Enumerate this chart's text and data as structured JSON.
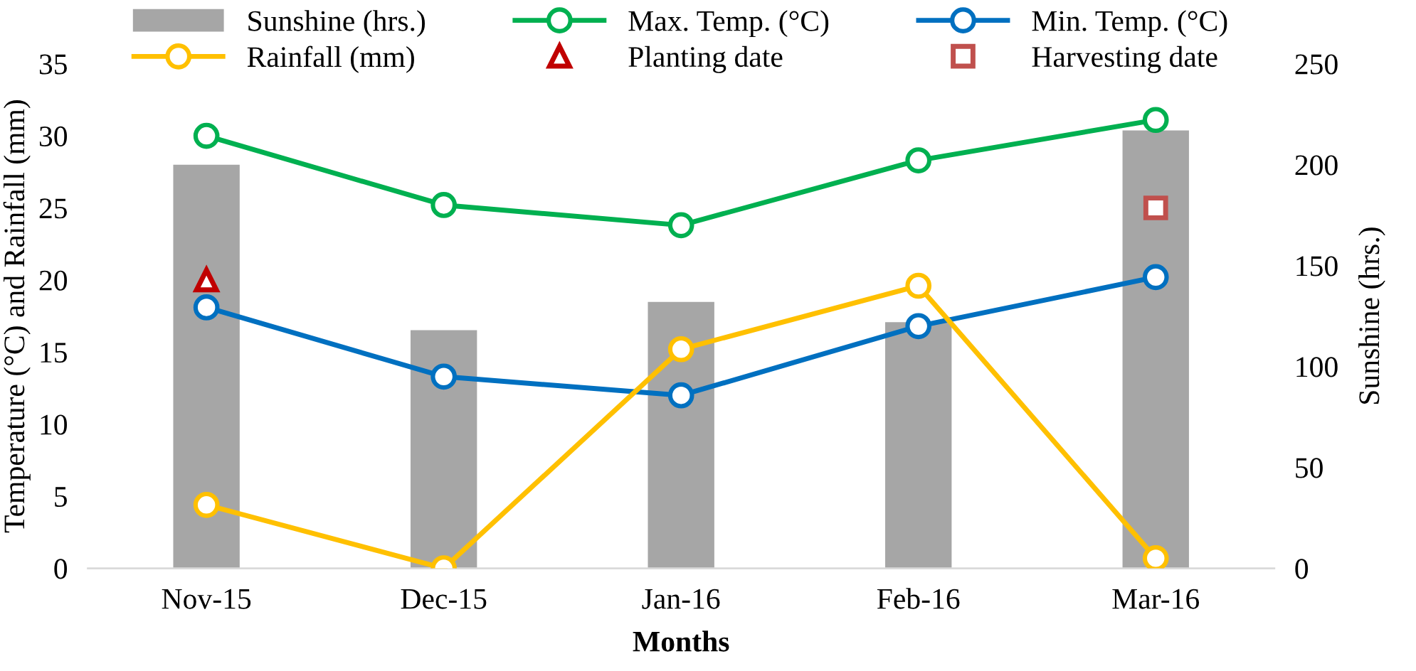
{
  "chart_data": {
    "type": "line",
    "xlabel": "Months",
    "ylabel": "Temperature (°C) and Rainfall (mm)",
    "y2label": "Sunshine (hrs.)",
    "categories": [
      "Nov-15",
      "Dec-15",
      "Jan-16",
      "Feb-16",
      "Mar-16"
    ],
    "ylim": [
      0,
      35
    ],
    "yticks": [
      0,
      5,
      10,
      15,
      20,
      25,
      30,
      35
    ],
    "y2lim": [
      0,
      250
    ],
    "y2ticks": [
      0,
      50,
      100,
      150,
      200,
      250
    ],
    "grid": false,
    "legend": "top",
    "marker": "circle",
    "line_style": "solid",
    "series": [
      {
        "name": "Sunshine (hrs.)",
        "type": "bar",
        "axis": "y2",
        "color": "#a6a6a6",
        "values": [
          200,
          118,
          132,
          122,
          217
        ]
      },
      {
        "name": "Max. Temp. (°C)",
        "color": "#00b050",
        "values": [
          30.0,
          25.2,
          23.8,
          28.3,
          31.1
        ]
      },
      {
        "name": "Min. Temp. (°C)",
        "color": "#0070c0",
        "values": [
          18.1,
          13.3,
          12.0,
          16.8,
          20.2
        ]
      },
      {
        "name": "Rainfall (mm)",
        "color": "#ffc000",
        "values": [
          4.4,
          0,
          15.2,
          19.6,
          0.7
        ]
      },
      {
        "name": "Planting date",
        "type": "scatter",
        "marker": "triangle",
        "color": "#c00000",
        "values": [
          20,
          null,
          null,
          null,
          null
        ]
      },
      {
        "name": "Harvesting date",
        "type": "scatter",
        "marker": "square",
        "color": "#c0504d",
        "values": [
          null,
          null,
          null,
          null,
          25
        ]
      }
    ]
  }
}
